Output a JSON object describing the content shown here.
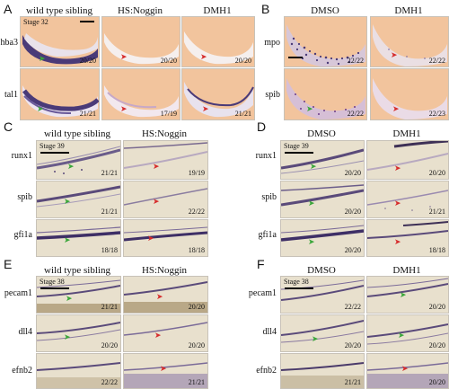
{
  "colors": {
    "green_arrow": "#3aa63a",
    "red_arrow": "#d62c2c",
    "stain": "#4a3a78",
    "embryo_a": "#f3c6a0",
    "tissue": "#e9e1cf"
  },
  "panels": {
    "A": {
      "label": "A",
      "columns": [
        "wild type sibling",
        "HS:Noggin",
        "DMH1"
      ],
      "stage": "Stage 32",
      "rows": [
        {
          "gene": "hba3",
          "counts": [
            "20/20",
            "20/20",
            "20/20"
          ]
        },
        {
          "gene": "tal1",
          "counts": [
            "21/21",
            "17/19",
            "21/21"
          ]
        }
      ]
    },
    "B": {
      "label": "B",
      "columns": [
        "DMSO",
        "DMH1"
      ],
      "rows": [
        {
          "gene": "mpo",
          "counts": [
            "22/22",
            "22/22"
          ]
        },
        {
          "gene": "spib",
          "counts": [
            "22/22",
            "22/23"
          ]
        }
      ]
    },
    "C": {
      "label": "C",
      "columns": [
        "wild type sibling",
        "HS:Noggin"
      ],
      "stage": "Stage 39",
      "rows": [
        {
          "gene": "runx1",
          "counts": [
            "21/21",
            "19/19"
          ]
        },
        {
          "gene": "spib",
          "counts": [
            "21/21",
            "22/22"
          ]
        },
        {
          "gene": "gfi1a",
          "counts": [
            "18/18",
            "18/18"
          ]
        }
      ]
    },
    "D": {
      "label": "D",
      "columns": [
        "DMSO",
        "DMH1"
      ],
      "stage": "Stage 39",
      "rows": [
        {
          "gene": "runx1",
          "counts": [
            "20/20",
            "20/20"
          ]
        },
        {
          "gene": "spib",
          "counts": [
            "20/20",
            "21/21"
          ]
        },
        {
          "gene": "gfi1a",
          "counts": [
            "20/20",
            "18/18"
          ]
        }
      ]
    },
    "E": {
      "label": "E",
      "columns": [
        "wild type sibling",
        "HS:Noggin"
      ],
      "stage": "Stage 38",
      "rows": [
        {
          "gene": "pecam1",
          "counts": [
            "21/21",
            "20/20"
          ]
        },
        {
          "gene": "dll4",
          "counts": [
            "20/20",
            "20/20"
          ]
        },
        {
          "gene": "efnb2",
          "counts": [
            "22/22",
            "21/21"
          ]
        }
      ]
    },
    "F": {
      "label": "F",
      "columns": [
        "DMSO",
        "DMH1"
      ],
      "stage": "Stage 38",
      "rows": [
        {
          "gene": "pecam1",
          "counts": [
            "22/22",
            "20/20"
          ]
        },
        {
          "gene": "dll4",
          "counts": [
            "20/20",
            "20/20"
          ]
        },
        {
          "gene": "efnb2",
          "counts": [
            "21/21",
            "20/20"
          ]
        }
      ]
    }
  }
}
